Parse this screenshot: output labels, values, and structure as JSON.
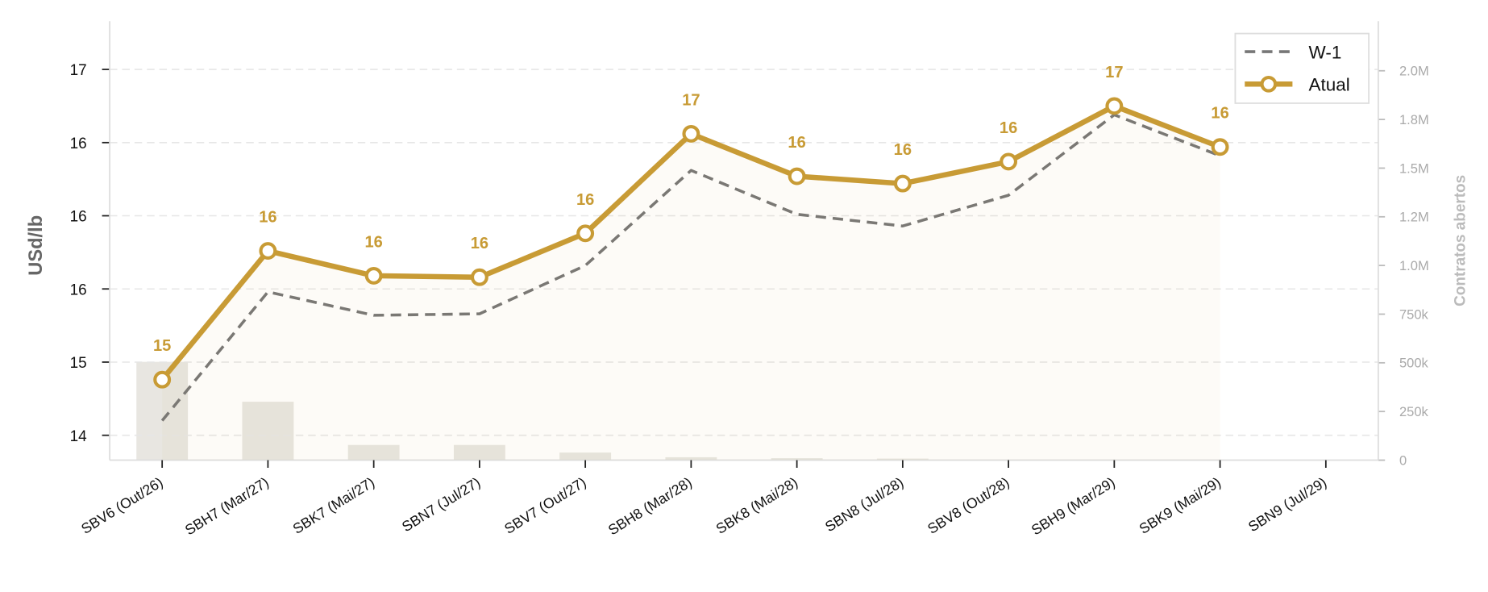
{
  "chart_data": {
    "type": "line",
    "y_label": "USd/lb",
    "y2_label": "Contratos abertos",
    "categories": [
      "SBV6 (Out/26)",
      "SBH7 (Mar/27)",
      "SBK7 (Mai/27)",
      "SBN7 (Jul/27)",
      "SBV7 (Out/27)",
      "SBH8 (Mar/28)",
      "SBK8 (Mai/28)",
      "SBN8 (Jul/28)",
      "SBV8 (Out/28)",
      "SBH9 (Mar/29)",
      "SBK9 (Mai/29)",
      "SBN9 (Jul/29)"
    ],
    "series": [
      {
        "name": "W-1",
        "color": "#777777",
        "dash": true,
        "values": [
          14.6,
          15.48,
          15.32,
          15.33,
          15.66,
          16.31,
          16.01,
          15.93,
          16.14,
          16.69,
          16.41,
          null
        ]
      },
      {
        "name": "Atual",
        "color": "#c89b35",
        "values": [
          14.88,
          15.76,
          15.59,
          15.58,
          15.88,
          16.56,
          16.27,
          16.22,
          16.37,
          16.75,
          16.47,
          null
        ],
        "value_labels": [
          "15",
          "16",
          "16",
          "16",
          "16",
          "17",
          "16",
          "16",
          "16",
          "17",
          "16",
          null
        ]
      },
      {
        "name": "Contratos abertos",
        "type": "bar",
        "axis": "y2",
        "color": "#e8e6e1",
        "values": [
          505000,
          300000,
          78000,
          78000,
          39000,
          15000,
          10000,
          8000,
          0,
          0,
          0,
          0
        ]
      }
    ],
    "ylim": [
      14.33,
      17.33
    ],
    "yticks": [
      {
        "value": 14.5,
        "label": "14"
      },
      15,
      {
        "value": 15.5,
        "label": "16"
      },
      16,
      {
        "value": 16.5,
        "label": "16"
      },
      17
    ],
    "y2lim": [
      0,
      2255000
    ],
    "y2ticks": [
      0,
      {
        "value": 250000,
        "label": "250k"
      },
      {
        "value": 500000,
        "label": "500k"
      },
      {
        "value": 750000,
        "label": "750k"
      },
      {
        "value": 1000000,
        "label": "1.0M"
      },
      {
        "value": 1250000,
        "label": "1.2M"
      },
      {
        "value": 1500000,
        "label": "1.5M"
      },
      {
        "value": 1750000,
        "label": "1.8M"
      },
      {
        "value": 2000000,
        "label": "2.0M"
      }
    ],
    "grid": true,
    "legend": "upper right"
  }
}
